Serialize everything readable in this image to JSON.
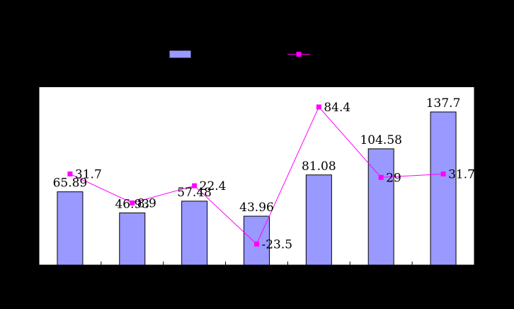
{
  "chart_data": {
    "type": "bar",
    "categories": [
      "",
      "",
      "",
      "",
      "",
      "",
      ""
    ],
    "series": [
      {
        "type": "bar",
        "values": [
          65.89,
          46.93,
          57.48,
          43.96,
          81.08,
          104.58,
          137.7
        ],
        "labels": [
          "65.89",
          "46.93",
          "57.48",
          "43.96",
          "81.08",
          "104.58",
          "137.7"
        ],
        "color": "#9999FF",
        "axis": "left"
      },
      {
        "type": "line",
        "values": [
          31.7,
          8.9,
          22.4,
          -23.5,
          84.4,
          29,
          31.7
        ],
        "labels": [
          "31.7",
          "8.9",
          "22.4",
          "-23.5",
          "84.4",
          "29",
          "31.7"
        ],
        "color": "#FF00FF",
        "axis": "right"
      }
    ],
    "ylim": [
      0,
      160
    ],
    "y2lim": [
      -40,
      100
    ],
    "legend": "top-center",
    "plot_background": "#FFFFFF",
    "page_background": "#000000",
    "grid": false
  }
}
